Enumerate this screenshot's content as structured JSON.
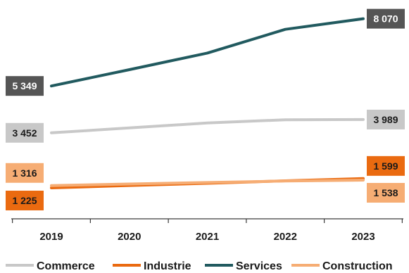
{
  "chart_data": {
    "type": "line",
    "title": "",
    "xlabel": "",
    "ylabel": "",
    "categories": [
      "2019",
      "2020",
      "2021",
      "2022",
      "2023"
    ],
    "ylim": [
      0,
      8600
    ],
    "grid": false,
    "legend_position": "bottom",
    "series": [
      {
        "name": "Commerce",
        "color": "#c8c8c8",
        "values": [
          3452,
          3650,
          3850,
          3980,
          3989
        ],
        "labels": {
          "first": "3 452",
          "last": "3 989"
        },
        "label_bg": "#c8c8c8",
        "label_text_color": "#1a1a1a"
      },
      {
        "name": "Industrie",
        "color": "#ea6a10",
        "values": [
          1225,
          1320,
          1410,
          1510,
          1599
        ],
        "labels": {
          "first": "1 225",
          "last": "1 599"
        },
        "label_bg": "#ea6a10",
        "label_text_color": "#1a1a1a"
      },
      {
        "name": "Services",
        "color": "#215a5f",
        "values": [
          5349,
          6010,
          6680,
          7640,
          8070
        ],
        "labels": {
          "first": "5 349",
          "last": "8 070"
        },
        "label_bg": "#555555",
        "label_text_color": "#ffffff"
      },
      {
        "name": "Construction",
        "color": "#f6ad74",
        "values": [
          1316,
          1380,
          1440,
          1500,
          1538
        ],
        "labels": {
          "first": "1 316",
          "last": "1 538"
        },
        "label_bg": "#f6ad74",
        "label_text_color": "#1a1a1a"
      }
    ]
  }
}
